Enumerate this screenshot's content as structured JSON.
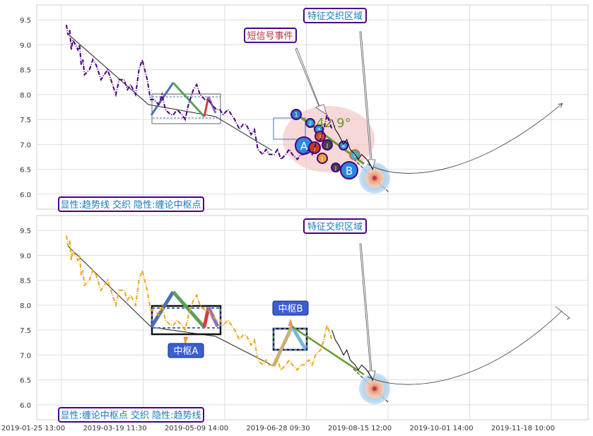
{
  "chart_data": [
    {
      "type": "line",
      "panel": "top",
      "ylim": [
        5.7,
        9.8
      ],
      "yticks": [
        6.0,
        6.5,
        7.0,
        7.5,
        8.0,
        8.5,
        9.0,
        9.5
      ],
      "series": [
        {
          "color": "#4b0082",
          "style": "dash-dot",
          "x": [
            "2019-01-28",
            "2019-01-29",
            "2019-01-30",
            "2019-01-31",
            "2019-02-01",
            "2019-02-04",
            "2019-02-05",
            "2019-02-06",
            "2019-02-07",
            "2019-02-08",
            "2019-02-11",
            "2019-02-13",
            "2019-02-15",
            "2019-02-18",
            "2019-02-20",
            "2019-02-22",
            "2019-02-25",
            "2019-02-27",
            "2019-03-01",
            "2019-03-04",
            "2019-03-06",
            "2019-03-08",
            "2019-03-11",
            "2019-03-13",
            "2019-03-15",
            "2019-03-18",
            "2019-03-20",
            "2019-03-22",
            "2019-03-25",
            "2019-03-27",
            "2019-03-29",
            "2019-04-01",
            "2019-04-03",
            "2019-04-05",
            "2019-04-08",
            "2019-04-10",
            "2019-04-12",
            "2019-04-15",
            "2019-04-17",
            "2019-04-19",
            "2019-04-22",
            "2019-04-24",
            "2019-04-26",
            "2019-04-29",
            "2019-05-01",
            "2019-05-03",
            "2019-05-06",
            "2019-05-08",
            "2019-05-10",
            "2019-05-13",
            "2019-05-15",
            "2019-05-17",
            "2019-05-20",
            "2019-05-22",
            "2019-05-24",
            "2019-05-27",
            "2019-05-29",
            "2019-05-31",
            "2019-06-03",
            "2019-06-05",
            "2019-06-07",
            "2019-06-10",
            "2019-06-12",
            "2019-06-14",
            "2019-06-17",
            "2019-06-19",
            "2019-06-21",
            "2019-06-24",
            "2019-06-26",
            "2019-06-28",
            "2019-07-01",
            "2019-07-03",
            "2019-07-05",
            "2019-07-08"
          ],
          "y": [
            9.4,
            9.2,
            9.3,
            8.9,
            9.1,
            8.9,
            9.0,
            8.6,
            8.7,
            8.4,
            8.5,
            8.7,
            8.6,
            8.3,
            8.4,
            8.5,
            8.2,
            8.0,
            8.3,
            8.3,
            8.1,
            8.2,
            8.0,
            8.5,
            8.7,
            8.3,
            7.9,
            7.9,
            7.8,
            8.0,
            7.7,
            7.6,
            7.6,
            7.7,
            7.6,
            7.5,
            7.8,
            8.1,
            8.2,
            8.0,
            7.9,
            7.9,
            7.8,
            7.7,
            7.7,
            7.6,
            7.7,
            7.6,
            7.5,
            7.3,
            7.4,
            7.4,
            7.2,
            7.3,
            6.9,
            6.8,
            6.9,
            6.8,
            6.8,
            6.9,
            6.7,
            6.8,
            6.9,
            6.8,
            6.7,
            6.8,
            6.8,
            6.9,
            6.8,
            7.0,
            7.1,
            7.3,
            7.6,
            7.3
          ]
        },
        {
          "color": "#000000",
          "x": [
            "2019-07-08",
            "2019-07-10",
            "2019-07-12",
            "2019-07-15",
            "2019-07-17",
            "2019-07-19",
            "2019-07-22",
            "2019-07-24",
            "2019-07-26",
            "2019-07-29",
            "2019-07-31",
            "2019-08-02"
          ],
          "y": [
            7.5,
            7.3,
            7.2,
            7.0,
            7.1,
            6.9,
            6.8,
            6.7,
            6.8,
            6.7,
            6.6,
            6.5
          ]
        }
      ],
      "annotations": {
        "top_label": "特征交织区域",
        "short_signal_label": "短信号事件",
        "angle_label": "-42.9°",
        "legend_label": "显性:趋势线 交织 隐性:缠论中枢点",
        "pivot_a_letter": "A",
        "pivot_b_letter": "B",
        "signal_numbers": [
          "1",
          "2",
          "3",
          "4",
          "5",
          "J",
          "J",
          "J",
          "J",
          "J",
          "J"
        ]
      }
    },
    {
      "type": "line",
      "panel": "bottom",
      "ylim": [
        5.7,
        9.8
      ],
      "yticks": [
        6.0,
        6.5,
        7.0,
        7.5,
        8.0,
        8.5,
        9.0,
        9.5
      ],
      "x_tick_labels": [
        "2019-01-25 13:00",
        "2019-03-19 11:30",
        "2019-05-09 14:00",
        "2019-06-28 09:30",
        "2019-08-15 12:00",
        "2019-10-01 14:00",
        "2019-11-18 10:00"
      ],
      "series": [
        {
          "color": "#e8a820",
          "style": "dash-dot",
          "x": [
            "2019-01-28",
            "2019-01-29",
            "2019-01-30",
            "2019-01-31",
            "2019-02-01",
            "2019-02-04",
            "2019-02-05",
            "2019-02-06",
            "2019-02-07",
            "2019-02-08",
            "2019-02-11",
            "2019-02-13",
            "2019-02-15",
            "2019-02-18",
            "2019-02-20",
            "2019-02-22",
            "2019-02-25",
            "2019-02-27",
            "2019-03-01",
            "2019-03-04",
            "2019-03-06",
            "2019-03-08",
            "2019-03-11",
            "2019-03-13",
            "2019-03-15",
            "2019-03-18",
            "2019-03-20",
            "2019-03-22",
            "2019-03-25",
            "2019-03-27",
            "2019-03-29",
            "2019-04-01",
            "2019-04-03",
            "2019-04-05",
            "2019-04-08",
            "2019-04-10",
            "2019-04-12",
            "2019-04-15",
            "2019-04-17",
            "2019-04-19",
            "2019-04-22",
            "2019-04-24",
            "2019-04-26",
            "2019-04-29",
            "2019-05-01",
            "2019-05-03",
            "2019-05-06",
            "2019-05-08",
            "2019-05-10",
            "2019-05-13",
            "2019-05-15",
            "2019-05-17",
            "2019-05-20",
            "2019-05-22",
            "2019-05-24",
            "2019-05-27",
            "2019-05-29",
            "2019-05-31",
            "2019-06-03",
            "2019-06-05",
            "2019-06-07",
            "2019-06-10",
            "2019-06-12",
            "2019-06-14",
            "2019-06-17",
            "2019-06-19",
            "2019-06-21",
            "2019-06-24",
            "2019-06-26",
            "2019-06-28",
            "2019-07-01",
            "2019-07-03",
            "2019-07-05",
            "2019-07-08"
          ],
          "y": [
            9.4,
            9.2,
            9.3,
            8.9,
            9.1,
            8.9,
            9.0,
            8.6,
            8.7,
            8.4,
            8.5,
            8.7,
            8.6,
            8.3,
            8.4,
            8.5,
            8.2,
            8.0,
            8.3,
            8.3,
            8.1,
            8.2,
            8.0,
            8.5,
            8.7,
            8.3,
            7.9,
            7.9,
            7.8,
            8.0,
            7.7,
            7.6,
            7.6,
            7.7,
            7.6,
            7.5,
            7.8,
            8.1,
            8.2,
            8.0,
            7.9,
            7.9,
            7.8,
            7.7,
            7.7,
            7.6,
            7.7,
            7.6,
            7.5,
            7.3,
            7.4,
            7.4,
            7.2,
            7.3,
            6.9,
            6.8,
            6.9,
            6.8,
            6.8,
            6.9,
            6.7,
            6.8,
            6.9,
            6.8,
            6.7,
            6.8,
            6.8,
            6.9,
            6.8,
            7.0,
            7.1,
            7.3,
            7.6,
            7.3
          ]
        },
        {
          "color": "#000000",
          "x": [
            "2019-07-08",
            "2019-07-10",
            "2019-07-12",
            "2019-07-15",
            "2019-07-17",
            "2019-07-19",
            "2019-07-22",
            "2019-07-24",
            "2019-07-26",
            "2019-07-29",
            "2019-07-31",
            "2019-08-02"
          ],
          "y": [
            7.5,
            7.3,
            7.2,
            7.0,
            7.1,
            6.9,
            6.8,
            6.7,
            6.8,
            6.7,
            6.6,
            6.5
          ]
        }
      ],
      "annotations": {
        "top_label": "特征交织区域",
        "pivot_a_label": "中枢A",
        "pivot_b_label": "中枢B",
        "legend_label": "显性:缠论中枢点 交织 隐性:趋势线"
      }
    }
  ]
}
